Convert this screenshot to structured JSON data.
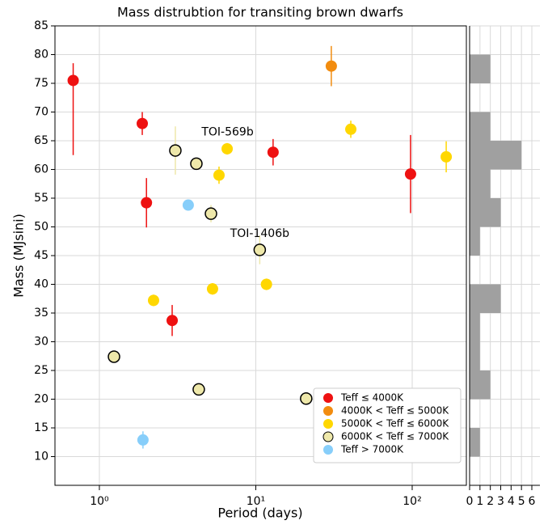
{
  "chart_data": [
    {
      "type": "scatter",
      "title": "Mass distrubtion for transiting brown dwarfs",
      "xlabel": "Period (days)",
      "ylabel": "Mass (MJsini)",
      "xscale": "log",
      "xlim": [
        0.52,
        222
      ],
      "ylim": [
        5,
        85
      ],
      "xticks": [
        {
          "value": 1,
          "label": "10⁰"
        },
        {
          "value": 10,
          "label": "10¹"
        },
        {
          "value": 100,
          "label": "10²"
        }
      ],
      "yticks": [
        10,
        15,
        20,
        25,
        30,
        35,
        40,
        45,
        50,
        55,
        60,
        65,
        70,
        75,
        80,
        85
      ],
      "grid": true,
      "legend": "lower right",
      "series": [
        {
          "name": "Teff ≤ 4000K",
          "color": "#ee1111",
          "x": [
            0.68,
            1.88,
            2.0,
            2.92,
            12.9,
            97.6
          ],
          "values": [
            75.5,
            68,
            54.2,
            33.7,
            63,
            59.2
          ],
          "yerr_minus": [
            13,
            2,
            4.3,
            2.7,
            2.3,
            6.8
          ],
          "yerr_plus": [
            3,
            2,
            4.3,
            2.7,
            2.3,
            6.8
          ]
        },
        {
          "name": "4000K < Teff ≤ 5000K",
          "color": "#f28c0f",
          "x": [
            30.4
          ],
          "values": [
            78
          ],
          "yerr_minus": [
            3.5
          ],
          "yerr_plus": [
            3.5
          ]
        },
        {
          "name": "5000K < Teff ≤ 6000K",
          "color": "#ffd700",
          "x": [
            6.56,
            5.82,
            5.29,
            2.22,
            11.7,
            40.5,
            165
          ],
          "values": [
            63.6,
            59,
            39.2,
            37.2,
            40,
            67,
            62.2
          ],
          "yerr_minus": [
            1,
            1.5,
            1,
            1,
            1,
            1.5,
            2.7
          ],
          "yerr_plus": [
            1,
            1.5,
            1,
            1,
            1,
            1.5,
            2.7
          ]
        },
        {
          "name": "6000K < Teff ≤ 7000K",
          "color": "#eee8aa",
          "edgecolor": "#000000",
          "x": [
            3.06,
            4.17,
            5.17,
            10.6,
            1.24,
            4.32,
            21.0
          ],
          "values": [
            63.3,
            61,
            52.3,
            46,
            27.4,
            21.7,
            20.1
          ],
          "yerr_minus": [
            4.2,
            1,
            1.5,
            2.5,
            0.5,
            null,
            null
          ],
          "yerr_plus": [
            4.2,
            1,
            1.5,
            2.5,
            0.5,
            null,
            null
          ]
        },
        {
          "name": "Teff > 7000K",
          "color": "#87cefa",
          "x": [
            3.7,
            1.9
          ],
          "values": [
            53.8,
            12.9
          ],
          "yerr_minus": [
            null,
            1.5
          ],
          "yerr_plus": [
            null,
            1.5
          ]
        }
      ],
      "annotations": [
        {
          "text": "TOI-569b",
          "x": 6.6,
          "y": 66.5
        },
        {
          "text": "TOI-1406b",
          "x": 10.6,
          "y": 48.8
        }
      ]
    },
    {
      "type": "histogram",
      "orientation": "horizontal",
      "color": "#a0a0a0",
      "bins": [
        10,
        15,
        20,
        25,
        30,
        35,
        40,
        45,
        50,
        55,
        60,
        65,
        70,
        75,
        80
      ],
      "counts": [
        1,
        0,
        2,
        1,
        1,
        3,
        0,
        1,
        3,
        2,
        5,
        2,
        0,
        2
      ],
      "xlim": [
        0,
        6
      ],
      "xticks": [
        0,
        1,
        2,
        3,
        4,
        5,
        6
      ],
      "grid": true
    }
  ]
}
